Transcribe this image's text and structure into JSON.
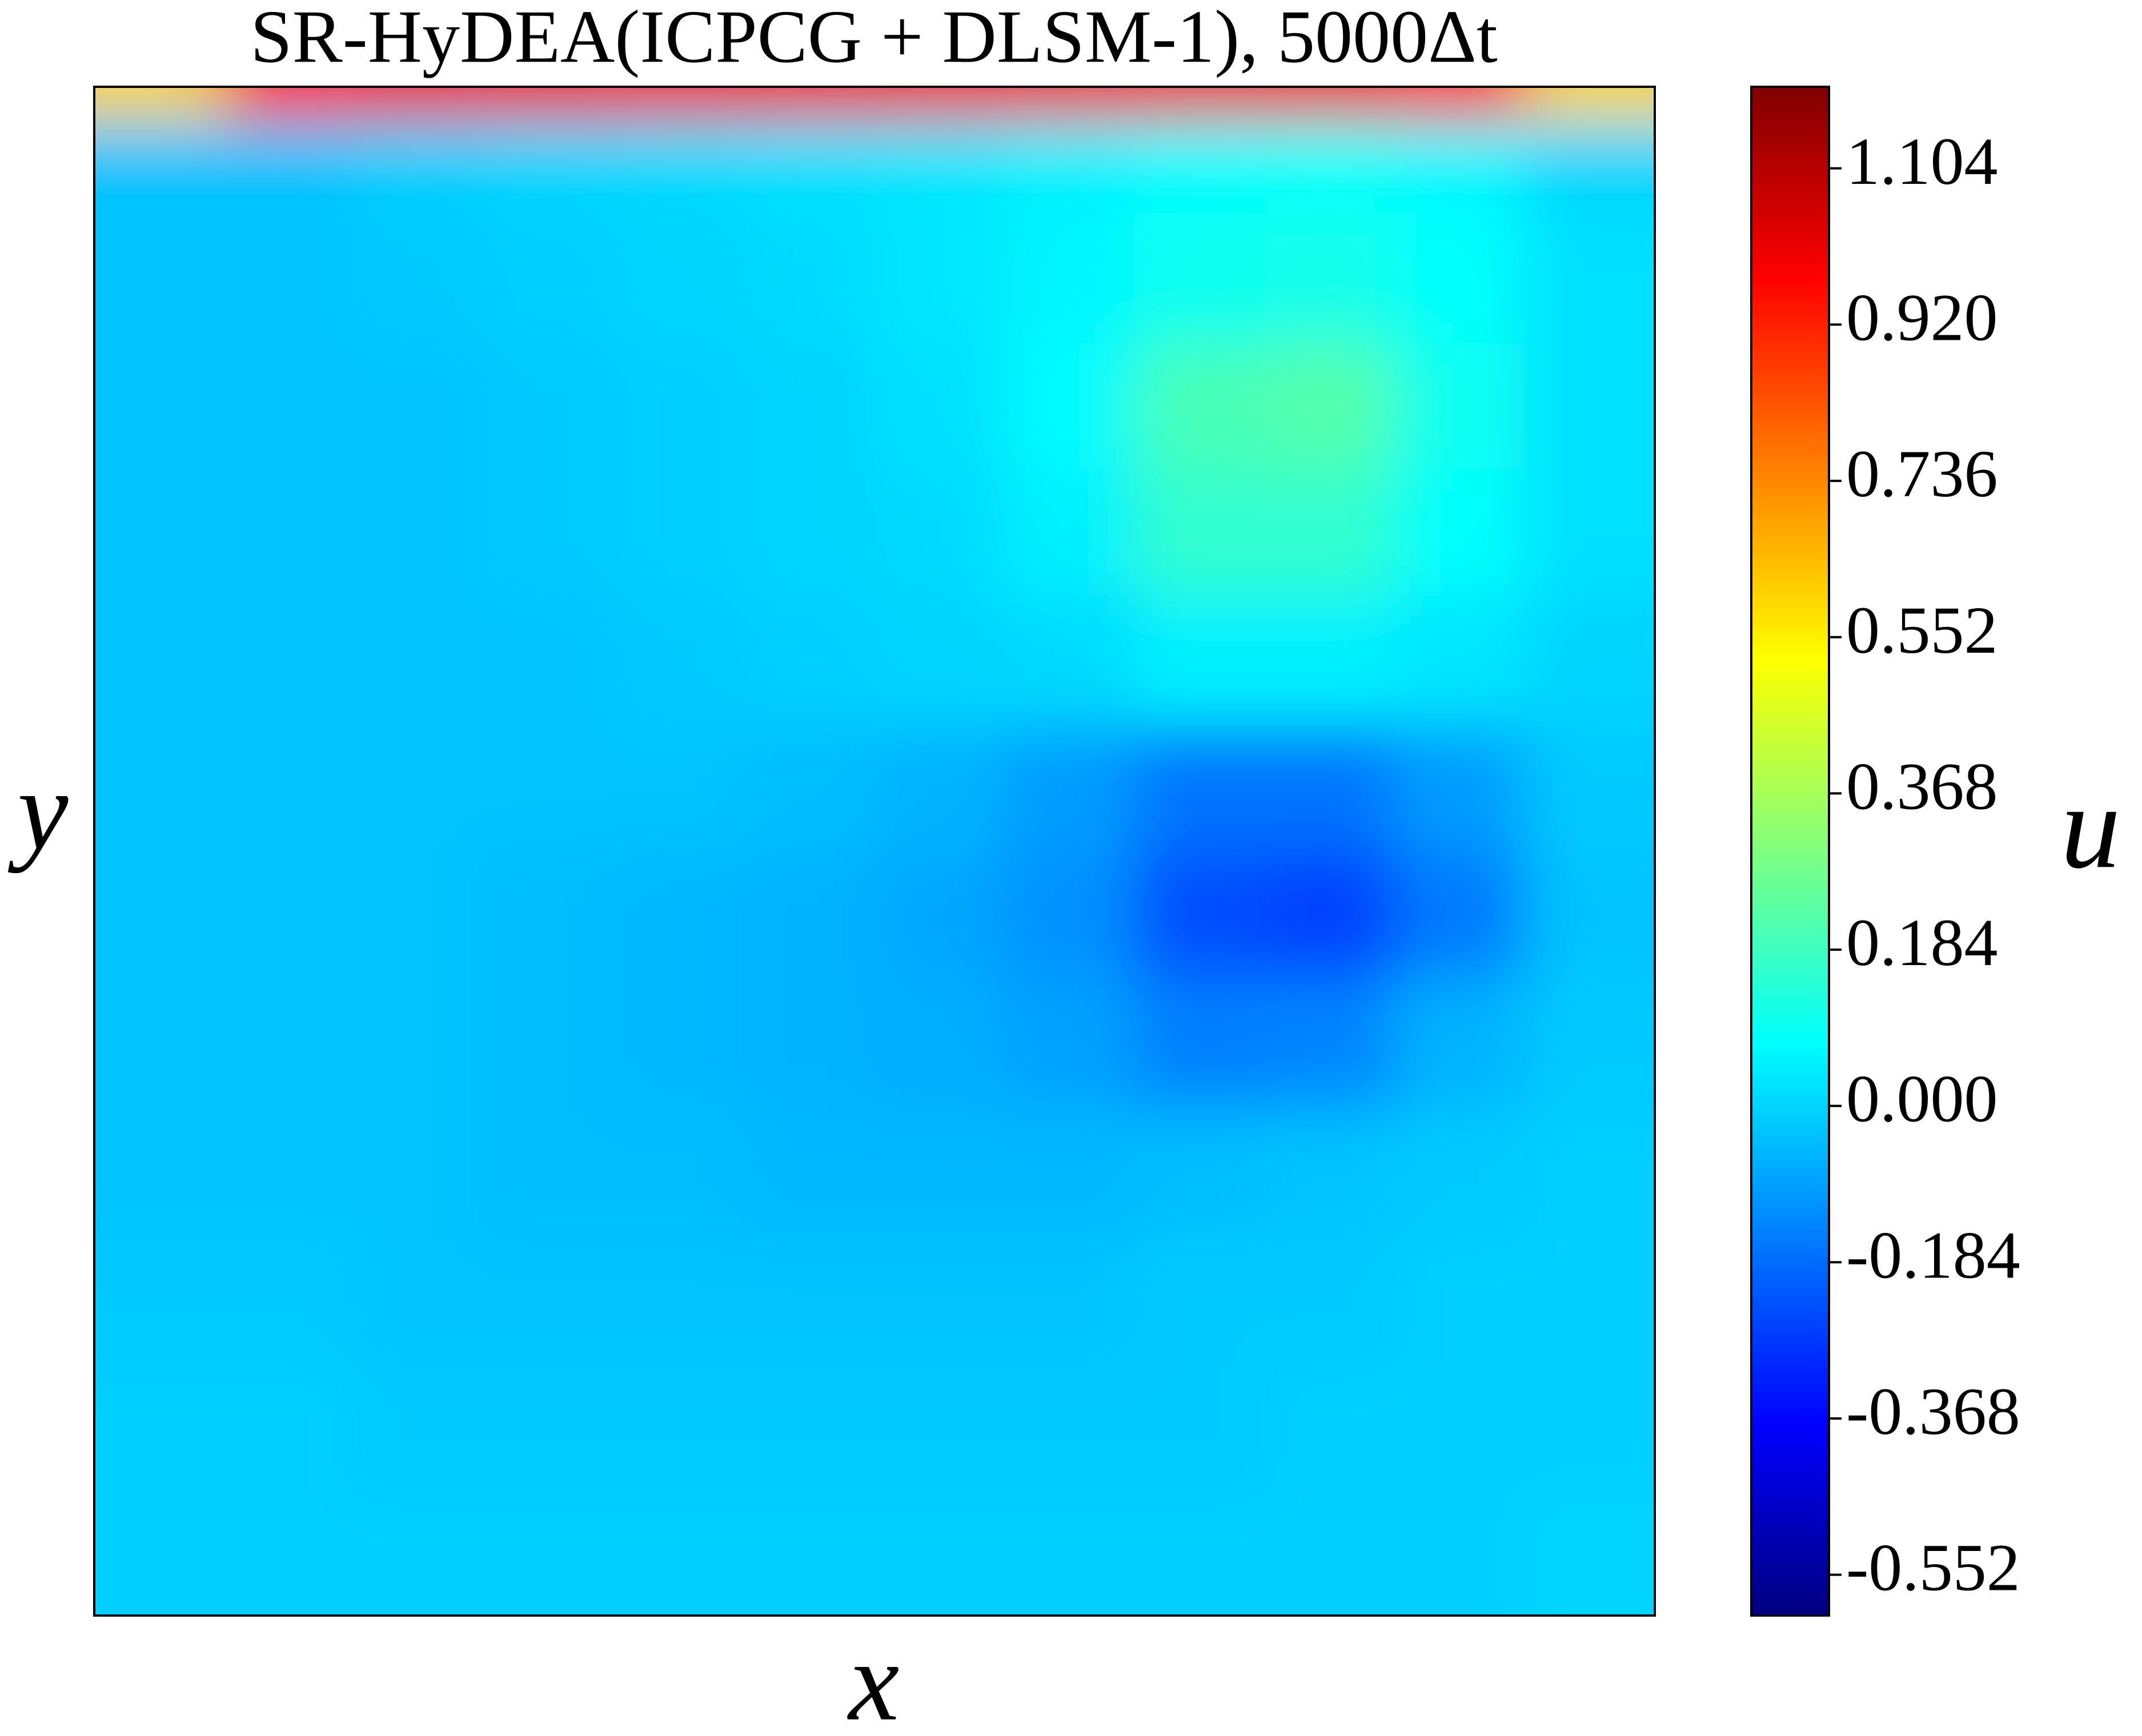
{
  "chart_data": {
    "type": "heatmap",
    "title": "SR-HyDEA(ICPCG + DLSM-1), 5000Δt",
    "x_label": "x",
    "y_label": "y",
    "colorbar_label": "u",
    "colormap": "jet",
    "clim": [
      -0.6,
      1.2
    ],
    "cticks": [
      -0.552,
      -0.368,
      -0.184,
      {
        "value": 0,
        "label": "0.000"
      },
      0.184,
      0.368,
      0.552,
      0.736,
      {
        "value": 0.92,
        "label": "0.920"
      },
      1.104
    ],
    "x": [
      0.042,
      0.125,
      0.208,
      0.292,
      0.375,
      0.458,
      0.542,
      0.625,
      0.708,
      0.792,
      0.875,
      0.958
    ],
    "y": [
      0.998,
      0.96,
      0.875,
      0.79,
      0.71,
      0.625,
      0.54,
      0.46,
      0.375,
      0.29,
      0.21,
      0.125,
      0.04
    ],
    "z": [
      [
        0.6,
        0.95,
        1.0,
        1.0,
        1.0,
        1.0,
        1.0,
        1.0,
        1.0,
        1.0,
        0.95,
        0.6
      ],
      [
        -0.03,
        -0.03,
        -0.01,
        0.0,
        0.01,
        0.02,
        0.03,
        0.05,
        0.07,
        0.08,
        0.06,
        0.0
      ],
      [
        -0.03,
        -0.03,
        -0.02,
        -0.01,
        0.0,
        0.01,
        0.03,
        0.06,
        0.1,
        0.11,
        0.08,
        0.02
      ],
      [
        -0.03,
        -0.03,
        -0.03,
        -0.02,
        -0.01,
        0.0,
        0.02,
        0.07,
        0.2,
        0.22,
        0.1,
        0.02
      ],
      [
        -0.03,
        -0.03,
        -0.03,
        -0.02,
        -0.01,
        0.0,
        0.01,
        0.05,
        0.16,
        0.16,
        0.08,
        0.02
      ],
      [
        -0.03,
        -0.03,
        -0.03,
        -0.03,
        -0.02,
        -0.01,
        0.0,
        0.01,
        0.05,
        0.05,
        0.03,
        0.0
      ],
      [
        -0.03,
        -0.03,
        -0.03,
        -0.03,
        -0.03,
        -0.04,
        -0.06,
        -0.1,
        -0.17,
        -0.17,
        -0.1,
        -0.02
      ],
      [
        -0.03,
        -0.03,
        -0.03,
        -0.04,
        -0.05,
        -0.06,
        -0.08,
        -0.12,
        -0.24,
        -0.26,
        -0.16,
        -0.03
      ],
      [
        -0.03,
        -0.03,
        -0.03,
        -0.04,
        -0.05,
        -0.06,
        -0.07,
        -0.09,
        -0.15,
        -0.14,
        -0.06,
        -0.02
      ],
      [
        -0.03,
        -0.03,
        -0.03,
        -0.04,
        -0.04,
        -0.05,
        -0.05,
        -0.05,
        -0.04,
        -0.03,
        -0.02,
        -0.01
      ],
      [
        -0.02,
        -0.02,
        -0.03,
        -0.03,
        -0.03,
        -0.03,
        -0.03,
        -0.03,
        -0.02,
        -0.02,
        -0.01,
        -0.01
      ],
      [
        -0.01,
        -0.01,
        -0.02,
        -0.02,
        -0.02,
        -0.02,
        -0.02,
        -0.02,
        -0.02,
        -0.01,
        -0.01,
        -0.01
      ],
      [
        -0.01,
        -0.01,
        -0.01,
        -0.01,
        -0.01,
        -0.01,
        -0.01,
        -0.01,
        -0.01,
        -0.01,
        -0.01,
        0.0
      ]
    ]
  }
}
